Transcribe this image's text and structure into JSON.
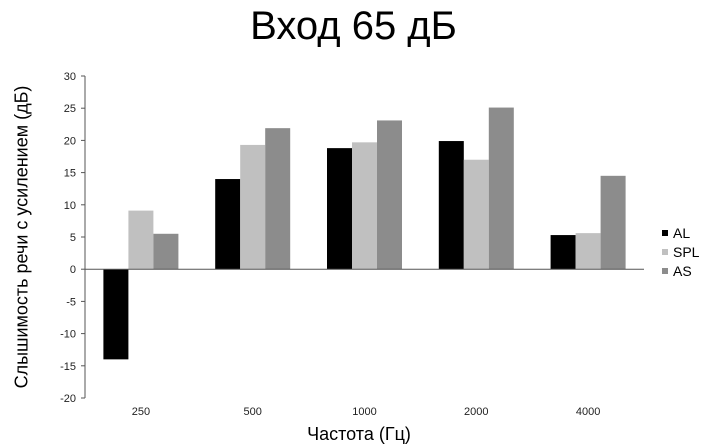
{
  "chart_data": {
    "type": "bar",
    "title": "Вход 65 дБ",
    "xlabel": "Частота (Гц)",
    "ylabel": "Слышимость речи с усилением (дБ)",
    "categories": [
      "250",
      "500",
      "1000",
      "2000",
      "4000"
    ],
    "series": [
      {
        "name": "AL",
        "values": [
          -14,
          14,
          18.8,
          19.9,
          5.3
        ],
        "color": "#000000"
      },
      {
        "name": "SPL",
        "values": [
          9.1,
          19.3,
          19.7,
          17,
          5.6
        ],
        "color": "#c0c0c0"
      },
      {
        "name": "AS",
        "values": [
          5.5,
          21.9,
          23.1,
          25.1,
          14.5
        ],
        "color": "#8c8c8c"
      }
    ],
    "ylim": [
      -20,
      30
    ],
    "yticks": [
      30,
      25,
      20,
      15,
      10,
      5,
      0,
      -5,
      -10,
      -15,
      -20
    ],
    "grid": false,
    "legend": "right"
  }
}
